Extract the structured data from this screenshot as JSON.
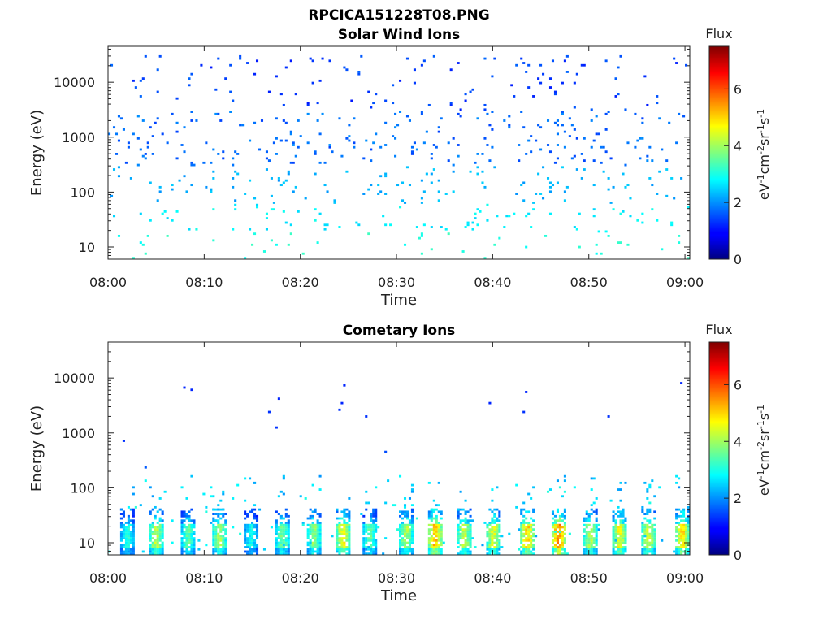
{
  "figure_title": "RPCICA151228T08.PNG",
  "chart_data": [
    {
      "type": "heatmap",
      "title": "Solar Wind Ions",
      "xlabel": "Time",
      "ylabel": "Energy (eV)",
      "x_ticks": [
        "08:00",
        "08:10",
        "08:20",
        "08:30",
        "08:40",
        "08:50",
        "09:00"
      ],
      "x_range_minutes": [
        0,
        60.5
      ],
      "y_scale": "log",
      "y_ticks": [
        "10",
        "100",
        "1000",
        "10000"
      ],
      "y_range": [
        6,
        45000
      ],
      "colorbar": {
        "title": "Flux",
        "label": "eV-1cm-2sr-1s-1",
        "range": [
          0,
          7.5
        ],
        "ticks": [
          "0",
          "2",
          "4",
          "6"
        ],
        "colormap": "jet"
      },
      "seed": 11,
      "density": [
        {
          "e_min": 3000,
          "e_max": 30000,
          "p": 0.055,
          "f_min": 1.1,
          "f_max": 1.7
        },
        {
          "e_min": 300,
          "e_max": 3000,
          "p": 0.11,
          "f_min": 1.4,
          "f_max": 2.0
        },
        {
          "e_min": 60,
          "e_max": 300,
          "p": 0.09,
          "f_min": 2.0,
          "f_max": 2.5
        },
        {
          "e_min": 18,
          "e_max": 60,
          "p": 0.07,
          "f_min": 2.5,
          "f_max": 3.0
        },
        {
          "e_min": 6,
          "e_max": 18,
          "p": 0.05,
          "f_min": 2.8,
          "f_max": 3.3
        }
      ]
    },
    {
      "type": "heatmap",
      "title": "Cometary Ions",
      "xlabel": "Time",
      "ylabel": "Energy (eV)",
      "x_ticks": [
        "08:00",
        "08:10",
        "08:20",
        "08:30",
        "08:40",
        "08:50",
        "09:00"
      ],
      "x_range_minutes": [
        0,
        60.5
      ],
      "y_scale": "log",
      "y_ticks": [
        "10",
        "100",
        "1000",
        "10000"
      ],
      "y_range": [
        6,
        45000
      ],
      "colorbar": {
        "title": "Flux",
        "label": "eV-1cm-2sr-1s-1",
        "range": [
          0,
          7.5
        ],
        "ticks": [
          "0",
          "2",
          "4",
          "6"
        ],
        "colormap": "jet"
      },
      "seed": 29,
      "bursts_minutes": [
        1.8,
        5.0,
        8.2,
        11.5,
        14.8,
        18.0,
        21.2,
        24.2,
        27.2,
        30.8,
        33.8,
        37.0,
        40.0,
        43.6,
        46.8,
        50.0,
        53.0,
        56.2,
        59.5
      ],
      "burst_peak_flux": [
        3.4,
        4.6,
        3.8,
        4.4,
        3.2,
        4.0,
        4.2,
        5.0,
        3.8,
        4.4,
        5.6,
        4.6,
        4.8,
        5.4,
        6.1,
        4.4,
        5.0,
        4.8,
        5.3
      ],
      "sparse_points": [
        {
          "t": 1.7,
          "e": 700,
          "f": 1.3
        },
        {
          "t": 3.8,
          "e": 230,
          "f": 1.6
        },
        {
          "t": 8.0,
          "e": 6800,
          "f": 1.2
        },
        {
          "t": 8.6,
          "e": 6300,
          "f": 1.2
        },
        {
          "t": 16.8,
          "e": 2400,
          "f": 1.3
        },
        {
          "t": 17.5,
          "e": 1250,
          "f": 1.3
        },
        {
          "t": 17.7,
          "e": 4400,
          "f": 1.2
        },
        {
          "t": 24.1,
          "e": 2700,
          "f": 1.3
        },
        {
          "t": 24.4,
          "e": 3600,
          "f": 1.2
        },
        {
          "t": 24.6,
          "e": 7300,
          "f": 1.2
        },
        {
          "t": 26.9,
          "e": 2000,
          "f": 1.3
        },
        {
          "t": 28.8,
          "e": 460,
          "f": 1.5
        },
        {
          "t": 39.6,
          "e": 3600,
          "f": 1.2
        },
        {
          "t": 43.3,
          "e": 2400,
          "f": 1.3
        },
        {
          "t": 43.6,
          "e": 5600,
          "f": 1.2
        },
        {
          "t": 52.0,
          "e": 2000,
          "f": 1.3
        },
        {
          "t": 59.6,
          "e": 7900,
          "f": 1.2
        }
      ]
    }
  ]
}
